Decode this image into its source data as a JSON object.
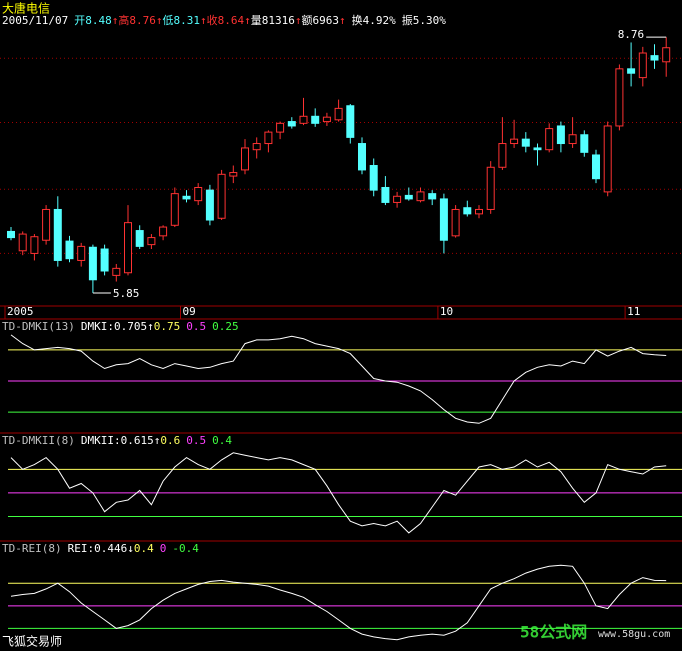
{
  "header": {
    "stock": "大唐电信",
    "date": "2005/11/07",
    "fields": [
      {
        "label": "开",
        "color": "#54ffff",
        "arrow": "↑"
      },
      {
        "label": "高",
        "color": "#ff3232",
        "arrow": "↑"
      },
      {
        "label": "低",
        "color": "#54ffff",
        "arrow": "↑"
      },
      {
        "label": "收",
        "color": "#ff3232",
        "arrow": "↑"
      }
    ],
    "extras": [
      {
        "label": "量",
        "value": 81316,
        "arrow": "↑"
      },
      {
        "label": "额",
        "value": 6963,
        "arrow": "↑"
      },
      {
        "label": "换",
        "value": "4.92%"
      },
      {
        "label": "振",
        "value": "5.30%"
      }
    ]
  },
  "footer": {
    "software": "飞狐交易师",
    "watermark": "58公式网",
    "url": "www.58gu.com"
  },
  "chart_data": [
    {
      "type": "candlestick",
      "categories": [
        "2005",
        null,
        null,
        null,
        null,
        null,
        null,
        null,
        null,
        null,
        null,
        null,
        null,
        null,
        null,
        "09",
        null,
        null,
        null,
        null,
        null,
        null,
        null,
        null,
        null,
        null,
        null,
        null,
        null,
        null,
        null,
        null,
        null,
        null,
        null,
        null,
        null,
        "10",
        null,
        null,
        null,
        null,
        null,
        null,
        null,
        null,
        null,
        null,
        null,
        null,
        null,
        null,
        null,
        "11",
        null,
        null,
        null
      ],
      "open": [
        6.55,
        6.33,
        6.3,
        6.45,
        6.8,
        6.44,
        6.22,
        6.37,
        6.35,
        6.05,
        6.08,
        6.56,
        6.4,
        6.5,
        6.62,
        6.95,
        6.9,
        7.02,
        6.7,
        7.18,
        7.25,
        7.48,
        7.55,
        7.68,
        7.8,
        7.78,
        7.86,
        7.8,
        7.82,
        7.98,
        7.55,
        7.3,
        7.05,
        6.88,
        6.96,
        6.9,
        6.98,
        6.92,
        6.5,
        6.82,
        6.75,
        6.8,
        7.28,
        7.55,
        7.6,
        7.5,
        7.48,
        7.75,
        7.55,
        7.65,
        7.42,
        7.0,
        7.75,
        8.4,
        8.3,
        8.55,
        8.48
      ],
      "high": [
        6.6,
        6.55,
        6.52,
        6.85,
        6.95,
        6.5,
        6.42,
        6.4,
        6.4,
        6.18,
        6.85,
        6.62,
        6.52,
        6.62,
        7.05,
        7.02,
        7.1,
        7.08,
        7.25,
        7.3,
        7.6,
        7.62,
        7.7,
        7.8,
        7.85,
        8.07,
        7.95,
        7.9,
        8.05,
        8.0,
        7.62,
        7.38,
        7.18,
        7.0,
        7.05,
        7.05,
        7.02,
        6.98,
        6.85,
        6.9,
        6.85,
        7.35,
        7.85,
        7.82,
        7.68,
        7.55,
        7.78,
        7.8,
        7.85,
        7.7,
        7.48,
        7.8,
        8.45,
        8.7,
        8.65,
        8.68,
        8.76
      ],
      "low": [
        6.45,
        6.28,
        6.22,
        6.4,
        6.15,
        6.2,
        6.15,
        5.85,
        6.05,
        5.98,
        6.05,
        6.35,
        6.35,
        6.45,
        6.6,
        6.88,
        6.85,
        6.62,
        6.68,
        7.1,
        7.2,
        7.38,
        7.45,
        7.6,
        7.72,
        7.76,
        7.74,
        7.75,
        7.8,
        7.55,
        7.2,
        6.95,
        6.85,
        6.82,
        6.9,
        6.88,
        6.85,
        6.3,
        6.48,
        6.72,
        6.7,
        6.75,
        7.25,
        7.5,
        7.45,
        7.3,
        7.45,
        7.45,
        7.5,
        7.4,
        7.1,
        6.95,
        7.7,
        8.2,
        8.2,
        8.4,
        8.31
      ],
      "close": [
        6.48,
        6.52,
        6.49,
        6.8,
        6.22,
        6.24,
        6.38,
        6.0,
        6.1,
        6.13,
        6.65,
        6.38,
        6.48,
        6.6,
        6.98,
        6.92,
        7.05,
        6.68,
        7.2,
        7.22,
        7.5,
        7.55,
        7.68,
        7.78,
        7.75,
        7.86,
        7.78,
        7.85,
        7.95,
        7.62,
        7.25,
        7.02,
        6.88,
        6.95,
        6.92,
        7.0,
        6.92,
        6.45,
        6.8,
        6.75,
        6.8,
        7.28,
        7.55,
        7.6,
        7.52,
        7.48,
        7.72,
        7.55,
        7.65,
        7.45,
        7.15,
        7.75,
        8.4,
        8.35,
        8.58,
        8.5,
        8.64
      ],
      "ylim": [
        5.77,
        8.91
      ],
      "gridlines": [
        8.52,
        7.79,
        7.03,
        6.3
      ],
      "up_color": "#ff3232",
      "down_color": "#54ffff",
      "grid_color": "#a00000"
    },
    {
      "type": "line",
      "name": "TD-DMKI(13)",
      "label": "DMKI:",
      "arrow": "↑",
      "color": "#ffffff",
      "ylim": [
        0.09,
        0.99
      ],
      "values": [
        0.87,
        0.8,
        0.75,
        0.76,
        0.77,
        0.76,
        0.74,
        0.66,
        0.6,
        0.63,
        0.64,
        0.68,
        0.63,
        0.6,
        0.64,
        0.62,
        0.6,
        0.61,
        0.64,
        0.66,
        0.8,
        0.83,
        0.83,
        0.84,
        0.86,
        0.84,
        0.8,
        0.78,
        0.76,
        0.72,
        0.62,
        0.52,
        0.5,
        0.49,
        0.46,
        0.42,
        0.35,
        0.27,
        0.2,
        0.17,
        0.16,
        0.2,
        0.35,
        0.5,
        0.57,
        0.61,
        0.63,
        0.62,
        0.66,
        0.64,
        0.75,
        0.7,
        0.74,
        0.77,
        0.72,
        0.71,
        0.705
      ],
      "levels": [
        {
          "value": 0.75,
          "color": "#ffff60"
        },
        {
          "value": 0.5,
          "color": "#ff40ff"
        },
        {
          "value": 0.25,
          "color": "#40ff40"
        }
      ]
    },
    {
      "type": "line",
      "name": "TD-DMKII(8)",
      "label": "DMKII:",
      "arrow": "↑",
      "color": "#ffffff",
      "ylim": [
        0.3,
        0.75
      ],
      "values": [
        0.65,
        0.6,
        0.62,
        0.65,
        0.6,
        0.52,
        0.54,
        0.5,
        0.42,
        0.46,
        0.47,
        0.51,
        0.45,
        0.55,
        0.61,
        0.65,
        0.62,
        0.6,
        0.64,
        0.67,
        0.66,
        0.65,
        0.64,
        0.65,
        0.64,
        0.62,
        0.6,
        0.53,
        0.45,
        0.38,
        0.36,
        0.37,
        0.36,
        0.38,
        0.33,
        0.37,
        0.44,
        0.51,
        0.49,
        0.55,
        0.61,
        0.62,
        0.6,
        0.61,
        0.64,
        0.61,
        0.63,
        0.59,
        0.52,
        0.46,
        0.5,
        0.62,
        0.6,
        0.59,
        0.58,
        0.61,
        0.615
      ],
      "levels": [
        {
          "value": 0.6,
          "color": "#ffff60"
        },
        {
          "value": 0.5,
          "color": "#ff40ff"
        },
        {
          "value": 0.4,
          "color": "#40ff40"
        }
      ]
    },
    {
      "type": "line",
      "name": "TD-REI(8)",
      "label": "REI:",
      "arrow": "↓",
      "color": "#ffffff",
      "ylim": [
        -0.8,
        1.13
      ],
      "values": [
        0.17,
        0.2,
        0.22,
        0.3,
        0.4,
        0.25,
        0.05,
        -0.1,
        -0.25,
        -0.4,
        -0.35,
        -0.25,
        -0.05,
        0.1,
        0.22,
        0.3,
        0.38,
        0.43,
        0.45,
        0.42,
        0.4,
        0.38,
        0.35,
        0.28,
        0.22,
        0.15,
        0.02,
        -0.1,
        -0.25,
        -0.4,
        -0.5,
        -0.55,
        -0.58,
        -0.6,
        -0.55,
        -0.52,
        -0.5,
        -0.52,
        -0.45,
        -0.3,
        0.0,
        0.3,
        0.4,
        0.48,
        0.58,
        0.65,
        0.7,
        0.72,
        0.7,
        0.4,
        0.0,
        -0.05,
        0.2,
        0.4,
        0.5,
        0.45,
        0.446
      ],
      "levels": [
        {
          "value": 0.4,
          "color": "#ffff60"
        },
        {
          "value": 0,
          "color": "#ff40ff"
        },
        {
          "value": -0.4,
          "color": "#40ff40"
        }
      ]
    }
  ]
}
